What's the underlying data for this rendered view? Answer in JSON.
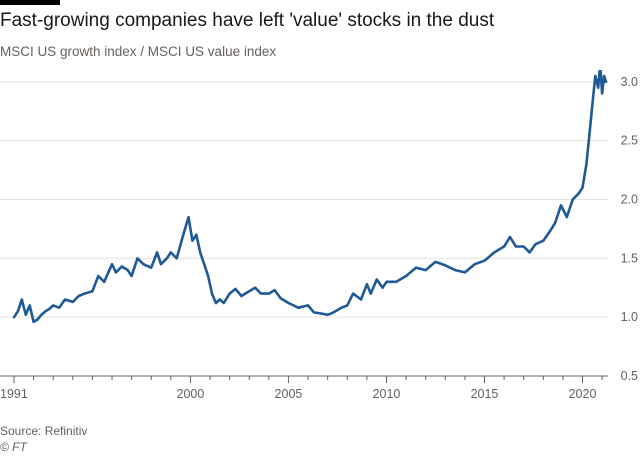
{
  "header": {
    "title": "Fast-growing companies have left 'value' stocks in the dust",
    "subtitle": "MSCI US growth index / MSCI US value index"
  },
  "footer": {
    "source": "Source: Refinitiv",
    "credit": "© FT"
  },
  "colors": {
    "line": "#1f5a96",
    "grid": "#e6e2de",
    "axis": "#66605c",
    "accent_bar": "#000000"
  },
  "chart_data": {
    "type": "line",
    "title": "Fast-growing companies have left 'value' stocks in the dust",
    "subtitle": "MSCI US growth index / MSCI US value index",
    "xlabel": "",
    "ylabel": "",
    "xlim": [
      1991,
      2021.3
    ],
    "ylim": [
      0.5,
      3.1
    ],
    "x_ticks": [
      1991,
      1992,
      1993,
      1994,
      1995,
      1996,
      1997,
      1998,
      1999,
      2000,
      2001,
      2002,
      2003,
      2004,
      2005,
      2006,
      2007,
      2008,
      2009,
      2010,
      2011,
      2012,
      2013,
      2014,
      2015,
      2016,
      2017,
      2018,
      2019,
      2020,
      2021
    ],
    "x_tick_labels": [
      "1991",
      "",
      "",
      "",
      "",
      "",
      "",
      "",
      "",
      "2000",
      "",
      "",
      "",
      "",
      "2005",
      "",
      "",
      "",
      "",
      "2010",
      "",
      "",
      "",
      "",
      "2015",
      "",
      "",
      "",
      "",
      "2020",
      ""
    ],
    "y_ticks": [
      0.5,
      1.0,
      1.5,
      2.0,
      2.5,
      3.0
    ],
    "y_tick_labels": [
      "0.5",
      "1.0",
      "1.5",
      "2.0",
      "2.5",
      "3.0"
    ],
    "y_axis_side": "right",
    "grid": "horizontal",
    "series": [
      {
        "x": [
          1991.0,
          1991.2,
          1991.4,
          1991.6,
          1991.8,
          1992.0,
          1992.2,
          1992.4,
          1992.6,
          1992.8,
          1993.0,
          1993.3,
          1993.6,
          1994.0,
          1994.3,
          1994.6,
          1995.0,
          1995.3,
          1995.6,
          1996.0,
          1996.2,
          1996.5,
          1996.8,
          1997.0,
          1997.3,
          1997.6,
          1998.0,
          1998.3,
          1998.5,
          1998.8,
          1999.0,
          1999.3,
          1999.6,
          1999.9,
          2000.1,
          2000.3,
          2000.5,
          2000.7,
          2000.9,
          2001.1,
          2001.3,
          2001.5,
          2001.7,
          2002.0,
          2002.3,
          2002.6,
          2003.0,
          2003.3,
          2003.6,
          2004.0,
          2004.3,
          2004.6,
          2005.0,
          2005.5,
          2006.0,
          2006.3,
          2006.7,
          2007.0,
          2007.3,
          2007.7,
          2008.0,
          2008.3,
          2008.7,
          2009.0,
          2009.2,
          2009.5,
          2009.8,
          2010.0,
          2010.5,
          2011.0,
          2011.5,
          2012.0,
          2012.5,
          2013.0,
          2013.5,
          2014.0,
          2014.5,
          2015.0,
          2015.5,
          2016.0,
          2016.3,
          2016.6,
          2017.0,
          2017.3,
          2017.6,
          2018.0,
          2018.3,
          2018.6,
          2018.9,
          2019.2,
          2019.5,
          2019.8,
          2020.0,
          2020.2,
          2020.35,
          2020.5,
          2020.65,
          2020.8,
          2020.9,
          2021.0,
          2021.1,
          2021.2
        ],
        "values": [
          1.0,
          1.05,
          1.15,
          1.02,
          1.1,
          0.96,
          0.98,
          1.02,
          1.05,
          1.07,
          1.1,
          1.08,
          1.15,
          1.13,
          1.18,
          1.2,
          1.22,
          1.35,
          1.3,
          1.45,
          1.38,
          1.43,
          1.4,
          1.35,
          1.5,
          1.45,
          1.42,
          1.55,
          1.45,
          1.5,
          1.55,
          1.5,
          1.68,
          1.85,
          1.65,
          1.7,
          1.55,
          1.45,
          1.35,
          1.2,
          1.12,
          1.15,
          1.12,
          1.2,
          1.24,
          1.18,
          1.22,
          1.25,
          1.2,
          1.2,
          1.23,
          1.16,
          1.12,
          1.08,
          1.1,
          1.04,
          1.03,
          1.02,
          1.04,
          1.08,
          1.1,
          1.2,
          1.15,
          1.28,
          1.2,
          1.32,
          1.25,
          1.3,
          1.3,
          1.35,
          1.42,
          1.4,
          1.47,
          1.44,
          1.4,
          1.38,
          1.45,
          1.48,
          1.55,
          1.6,
          1.68,
          1.6,
          1.6,
          1.55,
          1.62,
          1.65,
          1.72,
          1.8,
          1.95,
          1.85,
          2.0,
          2.05,
          2.1,
          2.3,
          2.55,
          2.8,
          3.05,
          2.95,
          3.15,
          2.9,
          3.05,
          3.0
        ]
      }
    ]
  }
}
